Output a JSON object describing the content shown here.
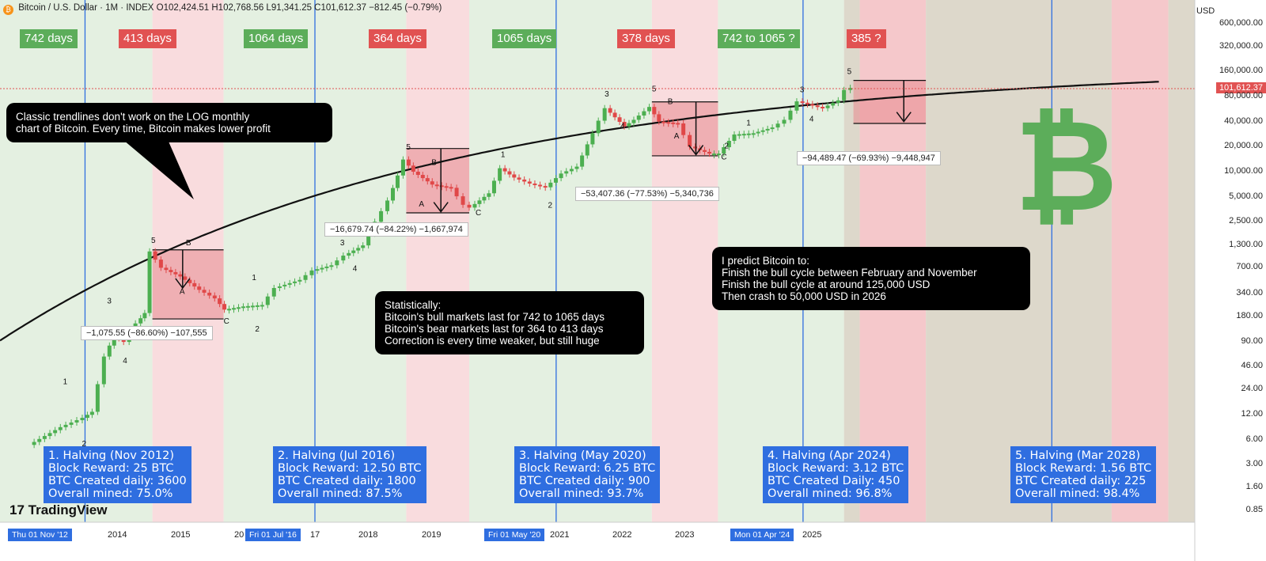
{
  "header": {
    "symbol_text": "Bitcoin / U.S. Dollar · 1M · INDEX",
    "ohlc_text": "O102,424.51 H102,768.56 L91,341.25 C101,612.37 −812.45 (−0.79%)",
    "currency": "USD",
    "last_price": "101,612.37",
    "brand": "TradingView",
    "logo_letter": "₿"
  },
  "cycle_labels": [
    {
      "text": "742 days",
      "type": "bull"
    },
    {
      "text": "413 days",
      "type": "bear"
    },
    {
      "text": "1064 days",
      "type": "bull"
    },
    {
      "text": "364 days",
      "type": "bear"
    },
    {
      "text": "1065 days",
      "type": "bull"
    },
    {
      "text": "378 days",
      "type": "bear"
    },
    {
      "text": "742 to 1065 ?",
      "type": "bull"
    },
    {
      "text": "385 ?",
      "type": "bear"
    }
  ],
  "callouts": {
    "trendline": [
      "Classic trendlines don't work on the LOG monthly",
      "chart of Bitcoin. Every time, Bitcoin makes lower profit"
    ],
    "statistics": [
      "Statistically:",
      "Bitcoin's bull markets last for 742 to 1065 days",
      "Bitcoin's bear markets last for 364 to 413 days",
      "Correction is every time weaker, but still huge"
    ],
    "prediction": [
      "I predict Bitcoin to:",
      "Finish the bull cycle between February and November",
      "Finish the bull cycle at around 125,000 USD",
      "Then crash to 50,000 USD in 2026"
    ]
  },
  "halvings": [
    {
      "title": "1. Halving (Nov 2012)",
      "reward": "Block Reward: 25 BTC",
      "daily": "BTC Created daily: 3600",
      "mined": "Overall mined: 75.0%"
    },
    {
      "title": "2. Halving (Jul 2016)",
      "reward": "Block Reward: 12.50 BTC",
      "daily": "BTC Created daily: 1800",
      "mined": "Overall mined: 87.5%"
    },
    {
      "title": "3. Halving (May 2020)",
      "reward": "Block Reward: 6.25 BTC",
      "daily": "BTC Created daily: 900",
      "mined": "Overall mined: 93.7%"
    },
    {
      "title": "4. Halving (Apr 2024)",
      "reward": "Block Reward: 3.12 BTC",
      "daily": "BTC Created Daily: 450",
      "mined": "Overall mined: 96.8%"
    },
    {
      "title": "5. Halving (Mar 2028)",
      "reward": "Block Reward: 1.56 BTC",
      "daily": "BTC Created daily: 225",
      "mined": "Overall mined: 98.4%"
    }
  ],
  "measurements": [
    "−1,075.55 (−86.60%) −107,555",
    "−16,679.74 (−84.22%) −1,667,974",
    "−53,407.36 (−77.53%) −5,340,736",
    "−94,489.47 (−69.93%) −9,448,947"
  ],
  "x_axis": {
    "labels": [
      "2014",
      "2015",
      "20",
      "17",
      "2018",
      "2019",
      "2021",
      "2022",
      "2023",
      "2025"
    ],
    "highlighted": [
      "Thu 01 Nov '12",
      "Fri 01 Jul '16",
      "Fri 01 May '20",
      "Mon 01 Apr '24"
    ]
  },
  "chart_data": {
    "type": "line",
    "scale": "log",
    "y_ticks": [
      "600,000.00",
      "320,000.00",
      "160,000.00",
      "80,000.00",
      "40,000.00",
      "20,000.00",
      "10,000.00",
      "5,000.00",
      "2,500.00",
      "1,300.00",
      "700.00",
      "340.00",
      "180.00",
      "90.00",
      "46.00",
      "24.00",
      "12.00",
      "6.00",
      "3.00",
      "1.60",
      "0.85"
    ],
    "series": [
      {
        "values": [
          [
            2012.0,
            5.2
          ],
          [
            2012.5,
            8.5
          ],
          [
            2012.85,
            11
          ],
          [
            2013.0,
            13
          ],
          [
            2013.2,
            60
          ],
          [
            2013.35,
            110
          ],
          [
            2013.5,
            90
          ],
          [
            2013.7,
            150
          ],
          [
            2013.83,
            200
          ],
          [
            2013.92,
            1100
          ],
          [
            2014.1,
            700
          ],
          [
            2014.4,
            550
          ],
          [
            2014.7,
            380
          ],
          [
            2014.95,
            300
          ],
          [
            2015.1,
            220
          ],
          [
            2015.4,
            240
          ],
          [
            2015.7,
            250
          ],
          [
            2015.9,
            400
          ],
          [
            2016.3,
            500
          ],
          [
            2016.5,
            650
          ],
          [
            2016.8,
            750
          ],
          [
            2017.0,
            980
          ],
          [
            2017.3,
            1300
          ],
          [
            2017.5,
            2500
          ],
          [
            2017.7,
            4500
          ],
          [
            2017.85,
            9000
          ],
          [
            2017.95,
            14000
          ],
          [
            2018.1,
            10000
          ],
          [
            2018.4,
            7000
          ],
          [
            2018.7,
            6400
          ],
          [
            2018.9,
            4000
          ],
          [
            2019.0,
            3700
          ],
          [
            2019.3,
            5500
          ],
          [
            2019.48,
            11000
          ],
          [
            2019.7,
            8500
          ],
          [
            2019.95,
            7200
          ],
          [
            2020.2,
            6500
          ],
          [
            2020.45,
            9500
          ],
          [
            2020.7,
            11500
          ],
          [
            2020.95,
            29000
          ],
          [
            2021.15,
            58000
          ],
          [
            2021.45,
            35000
          ],
          [
            2021.6,
            42000
          ],
          [
            2021.85,
            60000
          ],
          [
            2022.0,
            40000
          ],
          [
            2022.3,
            38000
          ],
          [
            2022.5,
            20000
          ],
          [
            2022.8,
            16500
          ],
          [
            2022.95,
            16500
          ],
          [
            2023.2,
            28000
          ],
          [
            2023.5,
            29000
          ],
          [
            2023.8,
            34000
          ],
          [
            2024.0,
            42000
          ],
          [
            2024.2,
            70000
          ],
          [
            2024.6,
            58000
          ],
          [
            2024.85,
            72000
          ],
          [
            2024.95,
            96000
          ],
          [
            2025.05,
            101612
          ]
        ]
      }
    ],
    "wave_labels": [
      {
        "t": "1",
        "x": 2012.5,
        "y": 28
      },
      {
        "t": "2",
        "x": 2012.8,
        "y": 5
      },
      {
        "t": "3",
        "x": 2013.2,
        "y": 260
      },
      {
        "t": "4",
        "x": 2013.45,
        "y": 50
      },
      {
        "t": "5",
        "x": 2013.9,
        "y": 1400
      },
      {
        "t": "B",
        "x": 2014.45,
        "y": 1300
      },
      {
        "t": "A",
        "x": 2014.35,
        "y": 340
      },
      {
        "t": "C",
        "x": 2015.05,
        "y": 150
      },
      {
        "t": "1",
        "x": 2015.5,
        "y": 500
      },
      {
        "t": "2",
        "x": 2015.55,
        "y": 120
      },
      {
        "t": "3",
        "x": 2016.9,
        "y": 1300
      },
      {
        "t": "4",
        "x": 2017.1,
        "y": 640
      },
      {
        "t": "5",
        "x": 2017.95,
        "y": 18500
      },
      {
        "t": "B",
        "x": 2018.35,
        "y": 12000
      },
      {
        "t": "A",
        "x": 2018.15,
        "y": 3800
      },
      {
        "t": "C",
        "x": 2019.05,
        "y": 3000
      },
      {
        "t": "1",
        "x": 2019.45,
        "y": 15000
      },
      {
        "t": "2",
        "x": 2020.2,
        "y": 3700
      },
      {
        "t": "3",
        "x": 2021.1,
        "y": 80000
      },
      {
        "t": "4",
        "x": 2021.35,
        "y": 33000
      },
      {
        "t": "5",
        "x": 2021.85,
        "y": 92000
      },
      {
        "t": "B",
        "x": 2022.1,
        "y": 65000
      },
      {
        "t": "A",
        "x": 2022.2,
        "y": 25000
      },
      {
        "t": "C",
        "x": 2022.95,
        "y": 14000
      },
      {
        "t": "1",
        "x": 2023.35,
        "y": 36000
      },
      {
        "t": "2",
        "x": 2023.0,
        "y": 19000
      },
      {
        "t": "3",
        "x": 2024.2,
        "y": 90000
      },
      {
        "t": "4",
        "x": 2024.35,
        "y": 40000
      },
      {
        "t": "5",
        "x": 2024.95,
        "y": 150000
      }
    ]
  }
}
